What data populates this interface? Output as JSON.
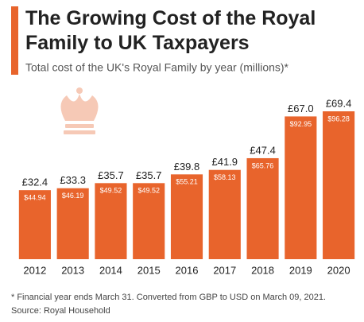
{
  "chart_data": {
    "type": "bar",
    "title": "The Growing Cost of the Royal Family to UK Taxpayers",
    "subtitle": "Total cost of the UK's Royal Family by year (millions)*",
    "categories": [
      "2012",
      "2013",
      "2014",
      "2015",
      "2016",
      "2017",
      "2018",
      "2019",
      "2020"
    ],
    "values": [
      32.4,
      33.3,
      35.7,
      35.7,
      39.8,
      41.9,
      47.4,
      67.0,
      69.4
    ],
    "value_labels": [
      "£32.4",
      "£33.3",
      "£35.7",
      "£35.7",
      "£39.8",
      "£41.9",
      "£47.4",
      "£67.0",
      "£69.4"
    ],
    "usd_values": [
      44.94,
      46.19,
      49.52,
      49.52,
      55.21,
      58.13,
      65.76,
      92.95,
      96.28
    ],
    "usd_labels": [
      "$44.94",
      "$46.19",
      "$49.52",
      "$49.52",
      "$55.21",
      "$58.13",
      "$65.76",
      "$92.95",
      "$96.28"
    ],
    "color": "#e8642c",
    "footnote": "* Financial year ends March 31. Converted from GBP to USD on March 09, 2021.",
    "source": "Source: Royal Household"
  }
}
